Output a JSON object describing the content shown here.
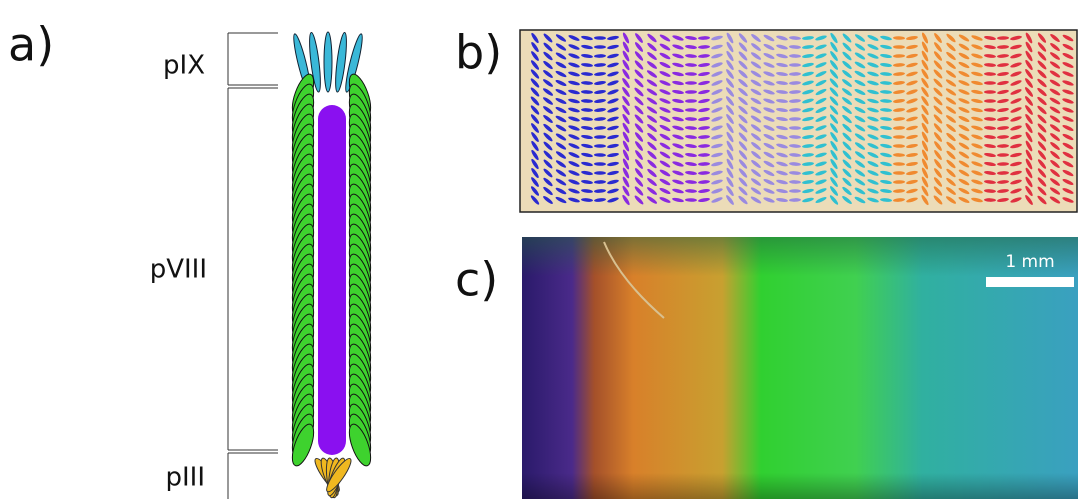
{
  "panels": {
    "a": {
      "label": "a)",
      "segments": [
        "pIX",
        "pVIII",
        "pIII"
      ]
    },
    "b": {
      "label": "b)"
    },
    "c": {
      "label": "c)",
      "scale_bar": "1 mm"
    }
  }
}
